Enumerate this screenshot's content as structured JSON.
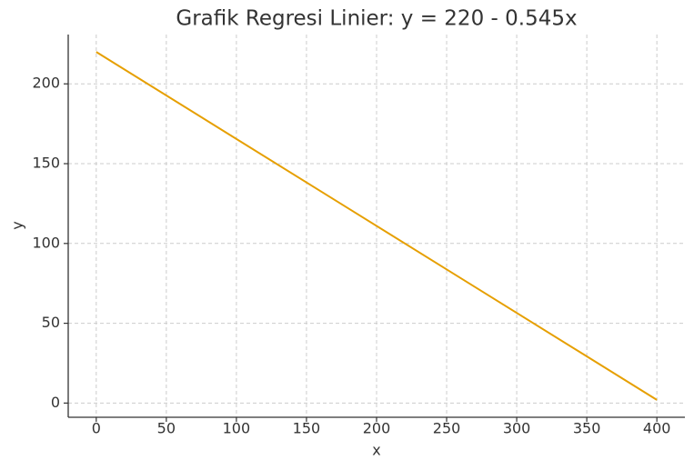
{
  "chart_data": {
    "type": "line",
    "title": "Grafik Regresi Linier: y = 220 - 0.545x",
    "x_label": "x",
    "y_label": "y",
    "x": [
      0,
      400
    ],
    "series": [
      {
        "color": "#e69f00",
        "values": [
          220,
          2
        ]
      }
    ],
    "xlim": [
      -20,
      420
    ],
    "xticks": [
      0,
      50,
      100,
      150,
      200,
      250,
      300,
      350,
      400
    ],
    "ylim": [
      -8.9,
      230.9
    ],
    "yticks": [
      0,
      50,
      100,
      150,
      200
    ],
    "grid": true
  }
}
